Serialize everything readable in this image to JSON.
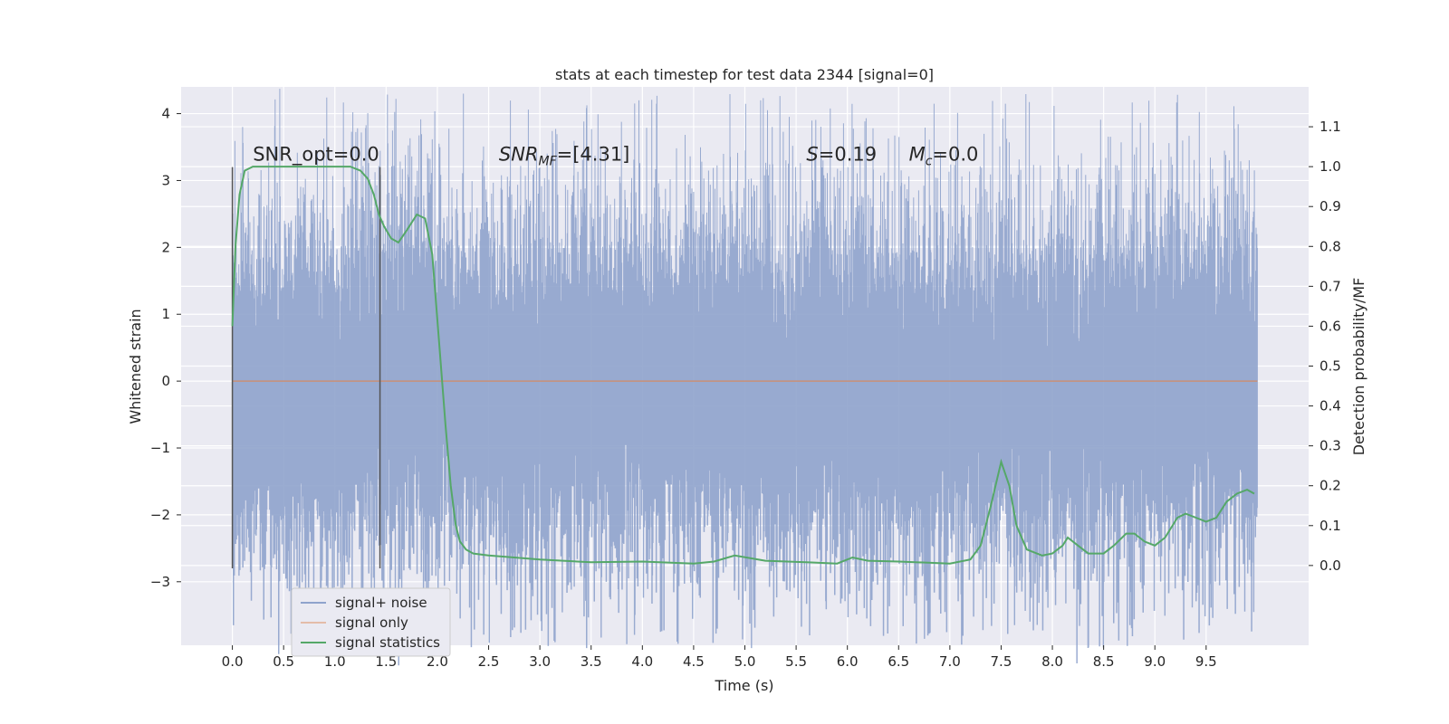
{
  "chart_data": {
    "type": "line",
    "title": "stats at each timestep for test data 2344 [signal=0]",
    "xlabel": "Time (s)",
    "ylabel_left": "Whitened strain",
    "ylabel_right": "Detection probability/MF",
    "xlim": [
      -0.5,
      10.5
    ],
    "ylim_left": [
      -3.95,
      4.4
    ],
    "ylim_right": [
      -0.2,
      1.2
    ],
    "x_ticks": [
      "0.0",
      "0.5",
      "1.0",
      "1.5",
      "2.0",
      "2.5",
      "3.0",
      "3.5",
      "4.0",
      "4.5",
      "5.0",
      "5.5",
      "6.0",
      "6.5",
      "7.0",
      "7.5",
      "8.0",
      "8.5",
      "9.0",
      "9.5"
    ],
    "y_ticks_left": [
      4,
      3,
      2,
      1,
      0,
      -1,
      -2,
      -3
    ],
    "y_tick_labels_left": [
      "4",
      "3",
      "2",
      "1",
      "0",
      "−1",
      "−2",
      "−3"
    ],
    "y_ticks_right": [
      1.1,
      1.0,
      0.9,
      0.8,
      0.7,
      0.6,
      0.5,
      0.4,
      0.3,
      0.2,
      0.1,
      0.0
    ],
    "y_tick_labels_right": [
      "1.1",
      "1.0",
      "0.9",
      "0.8",
      "0.7",
      "0.6",
      "0.5",
      "0.4",
      "0.3",
      "0.2",
      "0.1",
      "0.0"
    ],
    "grid": true,
    "legend_position": "lower-left",
    "series": [
      {
        "name": "signal+ noise",
        "color": "#8fa3cc",
        "axis": "left",
        "description": "dense whitened strain noise between roughly -3.5 and 4.1, range 0.0–10.0 s"
      },
      {
        "name": "signal only",
        "color": "#dd8452",
        "axis": "left",
        "x": [
          0.0,
          10.0
        ],
        "y": [
          0.0,
          0.0
        ]
      },
      {
        "name": "signal statistics",
        "color": "#55a868",
        "axis": "right",
        "x": [
          0.0,
          0.03,
          0.07,
          0.12,
          0.2,
          0.3,
          0.5,
          0.8,
          1.0,
          1.15,
          1.25,
          1.32,
          1.38,
          1.43,
          1.48,
          1.55,
          1.62,
          1.7,
          1.8,
          1.88,
          1.95,
          2.02,
          2.08,
          2.13,
          2.18,
          2.22,
          2.28,
          2.35,
          2.5,
          3.0,
          3.5,
          4.0,
          4.5,
          4.7,
          4.9,
          5.2,
          5.6,
          5.9,
          6.05,
          6.2,
          6.5,
          7.0,
          7.2,
          7.3,
          7.4,
          7.5,
          7.58,
          7.65,
          7.75,
          7.9,
          8.0,
          8.1,
          8.15,
          8.25,
          8.35,
          8.5,
          8.6,
          8.72,
          8.8,
          8.9,
          9.0,
          9.1,
          9.22,
          9.3,
          9.4,
          9.5,
          9.6,
          9.7,
          9.8,
          9.9,
          9.97
        ],
        "y": [
          0.6,
          0.8,
          0.93,
          0.99,
          1.0,
          1.0,
          1.0,
          1.0,
          1.0,
          1.0,
          0.99,
          0.97,
          0.93,
          0.88,
          0.85,
          0.82,
          0.81,
          0.84,
          0.88,
          0.87,
          0.78,
          0.55,
          0.35,
          0.2,
          0.1,
          0.06,
          0.04,
          0.03,
          0.025,
          0.015,
          0.008,
          0.01,
          0.005,
          0.01,
          0.025,
          0.012,
          0.008,
          0.005,
          0.02,
          0.012,
          0.01,
          0.005,
          0.015,
          0.05,
          0.15,
          0.26,
          0.2,
          0.1,
          0.04,
          0.025,
          0.03,
          0.05,
          0.07,
          0.05,
          0.03,
          0.03,
          0.05,
          0.08,
          0.08,
          0.06,
          0.05,
          0.07,
          0.12,
          0.13,
          0.12,
          0.11,
          0.12,
          0.16,
          0.18,
          0.19,
          0.18
        ]
      }
    ],
    "vertical_lines": [
      0.0,
      1.44
    ],
    "vertical_line_range_left": [
      -2.8,
      3.2
    ],
    "annotations": [
      {
        "text": "SNR_opt=0.0",
        "x": 0.2,
        "y": 3.3
      },
      {
        "text_base": "SNR",
        "text_sub": "MF",
        "text_rest": "=[4.31]",
        "x": 2.6,
        "y": 3.3
      },
      {
        "text_base": "S",
        "text_rest": "=0.19",
        "x": 5.6,
        "y": 3.3
      },
      {
        "text_base": "M",
        "text_sub": "c",
        "text_rest": "=0.0",
        "x": 6.6,
        "y": 3.3
      }
    ]
  }
}
